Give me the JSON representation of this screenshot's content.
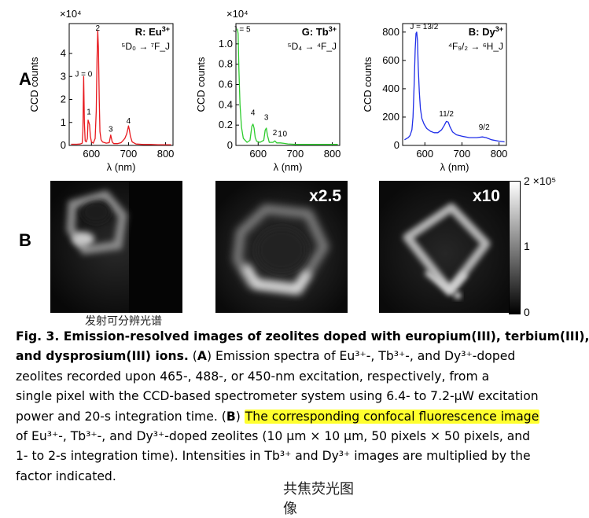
{
  "panel_labels": {
    "a": "A",
    "b": "B"
  },
  "chart_data": [
    {
      "type": "line",
      "panel": "R",
      "title_prefix": "R: ",
      "title_ion": "Eu",
      "title_charge": "3+",
      "transition": "⁵D₀ → ⁷F_J",
      "color": "#e8191e",
      "xlabel": "λ (nm)",
      "ylabel": "CCD counts",
      "y_exponent_label": "×10⁴",
      "xlim": [
        540,
        820
      ],
      "ylim": [
        0,
        5.3
      ],
      "xticks": [
        600,
        700,
        800
      ],
      "yticks": [
        0,
        1,
        2,
        3,
        4
      ],
      "peak_labels": [
        {
          "text": "J = 0",
          "x": 579,
          "y": 3.0
        },
        {
          "text": "1",
          "x": 593,
          "y": 1.35
        },
        {
          "text": "2",
          "x": 617,
          "y": 5.0
        },
        {
          "text": "3",
          "x": 652,
          "y": 0.6
        },
        {
          "text": "4",
          "x": 700,
          "y": 0.95
        }
      ],
      "x": [
        545,
        560,
        570,
        575,
        577,
        579,
        581,
        583,
        586,
        589,
        591,
        593,
        595,
        597,
        600,
        605,
        610,
        613,
        615,
        617,
        619,
        621,
        623,
        626,
        630,
        640,
        648,
        652,
        656,
        660,
        670,
        680,
        690,
        695,
        698,
        700,
        702,
        705,
        710,
        720,
        740,
        760,
        780,
        800,
        815
      ],
      "y": [
        0.05,
        0.05,
        0.06,
        0.1,
        0.6,
        3.0,
        1.0,
        0.2,
        0.15,
        0.3,
        1.1,
        1.0,
        0.9,
        0.4,
        0.15,
        0.1,
        0.3,
        1.5,
        3.8,
        5.0,
        4.2,
        2.0,
        0.6,
        0.25,
        0.15,
        0.1,
        0.12,
        0.45,
        0.15,
        0.08,
        0.08,
        0.12,
        0.3,
        0.5,
        0.7,
        0.85,
        0.7,
        0.4,
        0.15,
        0.06,
        0.04,
        0.04,
        0.03,
        0.03,
        0.03
      ]
    },
    {
      "type": "line",
      "panel": "G",
      "title_prefix": "G: ",
      "title_ion": "Tb",
      "title_charge": "3+",
      "transition": "⁵D₄ → ⁴F_J",
      "color": "#2ecc2e",
      "xlabel": "λ (nm)",
      "ylabel": "CCD counts",
      "y_exponent_label": "×10⁴",
      "xlim": [
        540,
        820
      ],
      "ylim": [
        0,
        1.2
      ],
      "xticks": [
        600,
        700,
        800
      ],
      "yticks": [
        0,
        0.2,
        0.4,
        0.6,
        0.8,
        1.0
      ],
      "ytick_labels": [
        "0",
        "0.2",
        "0.4",
        "0.6",
        "0.8",
        "1.0"
      ],
      "peak_labels": [
        {
          "text": "J = 5",
          "x": 556,
          "y": 1.12
        },
        {
          "text": "4",
          "x": 586,
          "y": 0.3
        },
        {
          "text": "3",
          "x": 622,
          "y": 0.25
        },
        {
          "text": "2",
          "x": 645,
          "y": 0.1
        },
        {
          "text": "1",
          "x": 659,
          "y": 0.09
        },
        {
          "text": "0",
          "x": 672,
          "y": 0.09
        }
      ],
      "x": [
        544,
        546,
        548,
        551,
        555,
        560,
        570,
        578,
        583,
        586,
        589,
        592,
        596,
        605,
        615,
        619,
        622,
        625,
        630,
        640,
        645,
        650,
        660,
        670,
        680,
        700,
        740,
        780,
        815
      ],
      "y": [
        1.15,
        1.1,
        0.75,
        0.4,
        0.18,
        0.07,
        0.03,
        0.05,
        0.19,
        0.21,
        0.17,
        0.08,
        0.04,
        0.03,
        0.05,
        0.15,
        0.17,
        0.1,
        0.03,
        0.03,
        0.045,
        0.025,
        0.025,
        0.02,
        0.015,
        0.01,
        0.01,
        0.01,
        0.01
      ]
    },
    {
      "type": "line",
      "panel": "B",
      "title_prefix": "B: ",
      "title_ion": "Dy",
      "title_charge": "3+",
      "transition": "⁴F₉/₂ → ⁶H_J",
      "color": "#1f2ee8",
      "xlabel": "λ (nm)",
      "ylabel": "CCD counts",
      "xlim": [
        540,
        820
      ],
      "ylim": [
        0,
        860
      ],
      "xticks": [
        600,
        700,
        800
      ],
      "yticks": [
        0,
        200,
        400,
        600,
        800
      ],
      "peak_labels": [
        {
          "text": "J = 13/2",
          "x": 598,
          "y": 820
        },
        {
          "text": "11/2",
          "x": 658,
          "y": 205
        },
        {
          "text": "9/2",
          "x": 760,
          "y": 110
        }
      ],
      "x": [
        545,
        555,
        560,
        565,
        568,
        571,
        574,
        576,
        578,
        580,
        582,
        585,
        588,
        592,
        598,
        605,
        615,
        625,
        635,
        645,
        652,
        658,
        663,
        668,
        675,
        685,
        700,
        720,
        740,
        755,
        765,
        780,
        800,
        815
      ],
      "y": [
        40,
        55,
        70,
        110,
        200,
        420,
        680,
        790,
        800,
        740,
        560,
        380,
        260,
        190,
        150,
        120,
        100,
        90,
        90,
        110,
        140,
        170,
        165,
        130,
        95,
        75,
        65,
        55,
        55,
        60,
        55,
        40,
        30,
        25
      ]
    }
  ],
  "images": [
    {
      "name": "eu-image",
      "multiplier": ""
    },
    {
      "name": "tb-image",
      "multiplier": "x2.5"
    },
    {
      "name": "dy-image",
      "multiplier": "x10"
    }
  ],
  "colorbar": {
    "top_label": "2 ×10⁵",
    "mid_label": "1",
    "bottom_label": "0"
  },
  "annotations": {
    "left_cjk": "发射可分辨光谱",
    "bottom_cjk_1": "共焦荧光图",
    "bottom_cjk_2": "像"
  },
  "caption": {
    "line1_bold": "Fig. 3.  Emission-resolved images of zeolites doped with europium(III), terbium(III),",
    "line2_bold": "and dysprosium(III) ions.",
    "line2_rest_a": " (",
    "line2_bold_A": "A",
    "line2_rest_b": ") Emission spectra of Eu³⁺-, Tb³⁺-, and Dy³⁺-doped",
    "line3": "zeolites recorded upon 465-, 488-, or 450-nm excitation, respectively, from a",
    "line4": "single pixel with the CCD-based spectrometer system using 6.4- to 7.2-μW excitation",
    "line5_a": "power and 20-s integration time. (",
    "line5_bold_B": "B",
    "line5_b": ") ",
    "line5_highlight": "The corresponding confocal fluorescence image",
    "line6": "of Eu³⁺-, Tb³⁺-, and Dy³⁺-doped zeolites (10 μm × 10 μm, 50 pixels × 50 pixels, and",
    "line7": "1- to 2-s integration time). Intensities in Tb³⁺ and Dy³⁺ images are multiplied by the",
    "line8": "factor indicated."
  },
  "colors": {
    "highlight": "#ffff2e",
    "eu": "#e8191e",
    "tb": "#2ecc2e",
    "dy": "#1f2ee8"
  }
}
